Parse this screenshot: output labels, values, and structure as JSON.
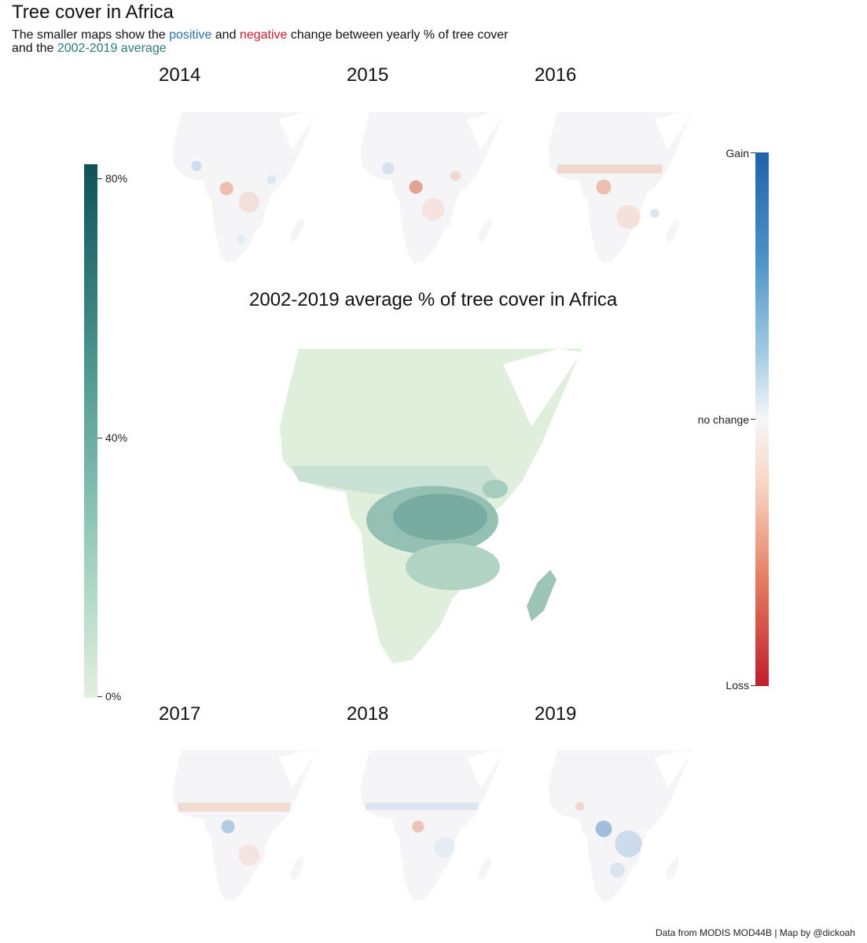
{
  "title": "Tree cover in Africa",
  "subtitle": {
    "part1": "The smaller maps show the ",
    "positive": "positive",
    "part2": " and ",
    "negative": "negative",
    "part3": " change between yearly % of tree cover",
    "part4": "and the ",
    "average": "2002-2019 average"
  },
  "years_top": [
    "2014",
    "2015",
    "2016"
  ],
  "years_bottom": [
    "2017",
    "2018",
    "2019"
  ],
  "main_map": {
    "title": "2002-2019 average % of tree cover in Africa"
  },
  "legend_average": {
    "labels": [
      "80%",
      "40%",
      "0%"
    ],
    "colors": [
      "#0e5257",
      "#e2f0dd"
    ]
  },
  "legend_change": {
    "labels": [
      "Gain",
      "no change",
      "Loss"
    ],
    "colors": {
      "gain": "#2162ac",
      "none": "#f6f7f8",
      "loss": "#c01e2c"
    }
  },
  "caption": "Data from MODIS MOD44B | Map by @dickoah",
  "colors": {
    "positive": "#2a6fb0",
    "negative": "#c0202f",
    "average": "#2c7a78",
    "land_small": "#f4f4f6",
    "land_main": "#e0efdc",
    "forest_main": "#78ac9e"
  }
}
